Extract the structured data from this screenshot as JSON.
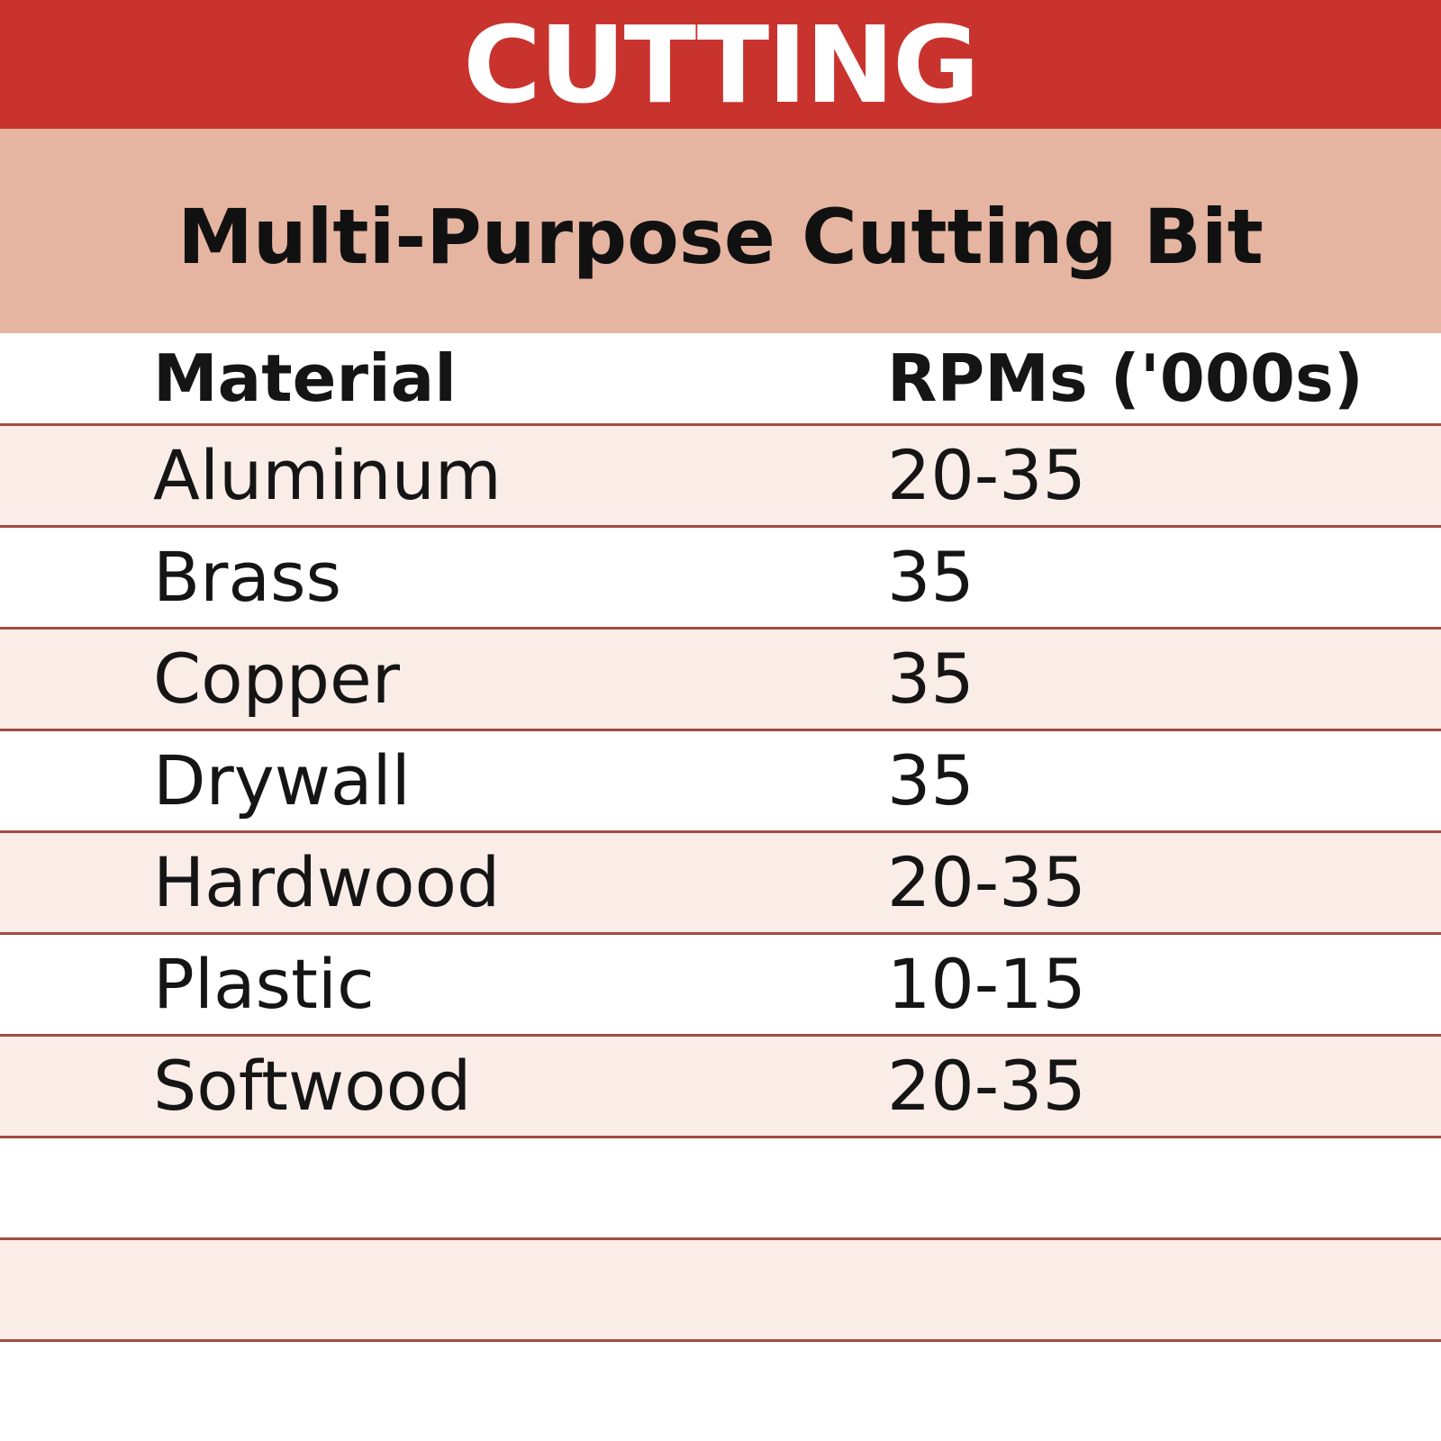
{
  "title": "CUTTING",
  "subtitle": "Multi-Purpose Cutting Bit",
  "table": {
    "columns": {
      "material": "Material",
      "rpm": "RPMs ('000s)"
    },
    "rows": [
      {
        "material": "Aluminum",
        "rpm": "20-35"
      },
      {
        "material": "Brass",
        "rpm": "35"
      },
      {
        "material": "Copper",
        "rpm": "35"
      },
      {
        "material": "Drywall",
        "rpm": "35"
      },
      {
        "material": "Hardwood",
        "rpm": "20-35"
      },
      {
        "material": "Plastic",
        "rpm": "10-15"
      },
      {
        "material": "Softwood",
        "rpm": "20-35"
      }
    ],
    "trailing_empty_rows": 2
  },
  "chart_data": {
    "type": "table",
    "title": "CUTTING",
    "subtitle": "Multi-Purpose Cutting Bit",
    "columns": [
      "Material",
      "RPMs ('000s)"
    ],
    "rows": [
      [
        "Aluminum",
        "20-35"
      ],
      [
        "Brass",
        "35"
      ],
      [
        "Copper",
        "35"
      ],
      [
        "Drywall",
        "35"
      ],
      [
        "Hardwood",
        "20-35"
      ],
      [
        "Plastic",
        "10-15"
      ],
      [
        "Softwood",
        "20-35"
      ]
    ],
    "rpm_units": "thousands of RPM",
    "layout_hints": {
      "striped_rows": true,
      "stripe_color": "#FAEDE8",
      "row_divider_color": "#A24B42"
    }
  },
  "colors": {
    "band_red": "#C9332E",
    "band_salmon": "#E5B5A1",
    "row_pink": "#FAEDE8",
    "row_border": "#A24B42",
    "title_text": "#FFFFFF",
    "body_text": "#151515"
  }
}
